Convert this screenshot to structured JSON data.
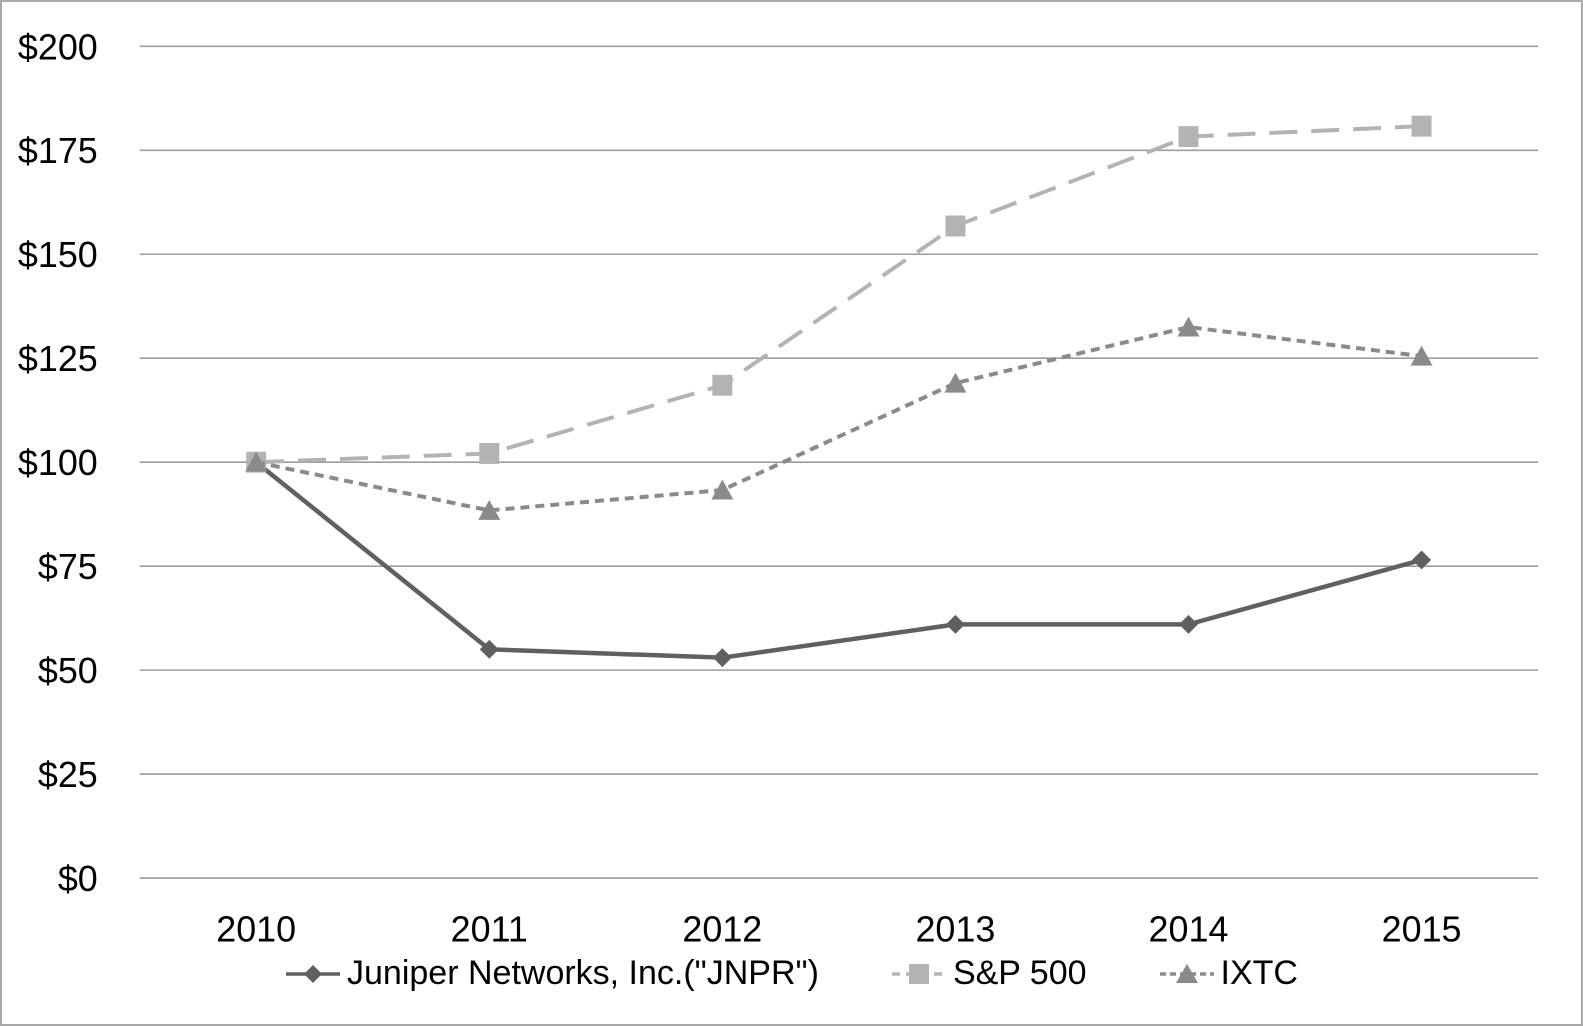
{
  "chart_data": {
    "type": "line",
    "title": "",
    "xlabel": "",
    "ylabel": "",
    "grid": true,
    "legend_position": "bottom",
    "ylim": [
      0,
      200
    ],
    "y_ticks": [
      "$200",
      "$175",
      "$150",
      "$125",
      "$100",
      "$75",
      "$50",
      "$25",
      "$0"
    ],
    "y_tick_values": [
      200,
      175,
      150,
      125,
      100,
      75,
      50,
      25,
      0
    ],
    "categories": [
      "2010",
      "2011",
      "2012",
      "2013",
      "2014",
      "2015"
    ],
    "series": [
      {
        "id": "jnpr",
        "name": "Juniper Networks, Inc.(\"JNPR\")",
        "values": [
          100,
          55,
          53,
          61,
          61,
          76.5
        ],
        "color": "#606060",
        "marker": "diamond",
        "dash": "solid",
        "line_width": 4.5
      },
      {
        "id": "sp500",
        "name": "S&P 500",
        "values": [
          100,
          102.1,
          118.5,
          156.8,
          178.3,
          180.8
        ],
        "color": "#b3b3b3",
        "marker": "square",
        "dash": "long-dash",
        "line_width": 4
      },
      {
        "id": "ixtc",
        "name": "IXTC",
        "values": [
          100,
          88.4,
          93.3,
          119,
          132.5,
          125.5
        ],
        "color": "#8a8a8a",
        "marker": "triangle",
        "dash": "short-dash",
        "line_width": 4
      }
    ]
  },
  "colors": {
    "gridline": "#9d9d9d",
    "text": "#000000",
    "border": "#a9a9a9",
    "background": "#ffffff"
  }
}
